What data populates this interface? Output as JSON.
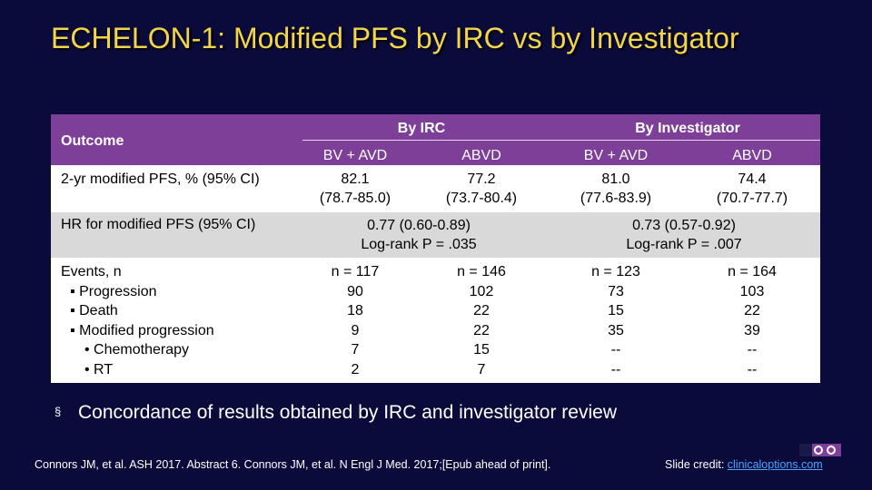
{
  "slide": {
    "title": "ECHELON-1: Modified PFS by IRC vs by Investigator"
  },
  "table": {
    "header": {
      "outcome": "Outcome",
      "group1": "By IRC",
      "group2": "By Investigator",
      "sub": [
        "BV + AVD",
        "ABVD",
        "BV + AVD",
        "ABVD"
      ]
    },
    "pfs": {
      "label": "2-yr modified PFS, % (95% CI)",
      "values": [
        {
          "main": "82.1",
          "ci": "(78.7-85.0)"
        },
        {
          "main": "77.2",
          "ci": "(73.7-80.4)"
        },
        {
          "main": "81.0",
          "ci": "(77.6-83.9)"
        },
        {
          "main": "74.4",
          "ci": "(70.7-77.7)"
        }
      ]
    },
    "hr": {
      "label": "HR for modified PFS (95% CI)",
      "irc_hr": "0.77 (0.60-0.89)",
      "irc_p": "Log-rank P = .035",
      "inv_hr": "0.73 (0.57-0.92)",
      "inv_p": "Log-rank P = .007"
    },
    "events": {
      "labels": [
        "Events, n",
        "▪ Progression",
        "▪ Death",
        "▪ Modified progression",
        "• Chemotherapy",
        "• RT"
      ],
      "columns": [
        [
          "n = 117",
          "90",
          "18",
          "9",
          "7",
          "2"
        ],
        [
          "n = 146",
          "102",
          "22",
          "22",
          "15",
          "7"
        ],
        [
          "n = 123",
          "73",
          "15",
          "35",
          "--",
          "--"
        ],
        [
          "n = 164",
          "103",
          "22",
          "39",
          "--",
          "--"
        ]
      ]
    }
  },
  "bullet": {
    "marker": "§",
    "text": "Concordance of results obtained by IRC and investigator review"
  },
  "footer": {
    "references": "Connors JM, et al. ASH 2017. Abstract 6. Connors JM, et al. N Engl J Med. 2017;[Epub ahead of print].",
    "credit_label": "Slide credit:",
    "credit_link": "clinicaloptions.com"
  },
  "colors": {
    "background": "#0b0b3b",
    "title": "#f2d54a",
    "header": "#7e3f98",
    "link": "#4aa3ff"
  }
}
